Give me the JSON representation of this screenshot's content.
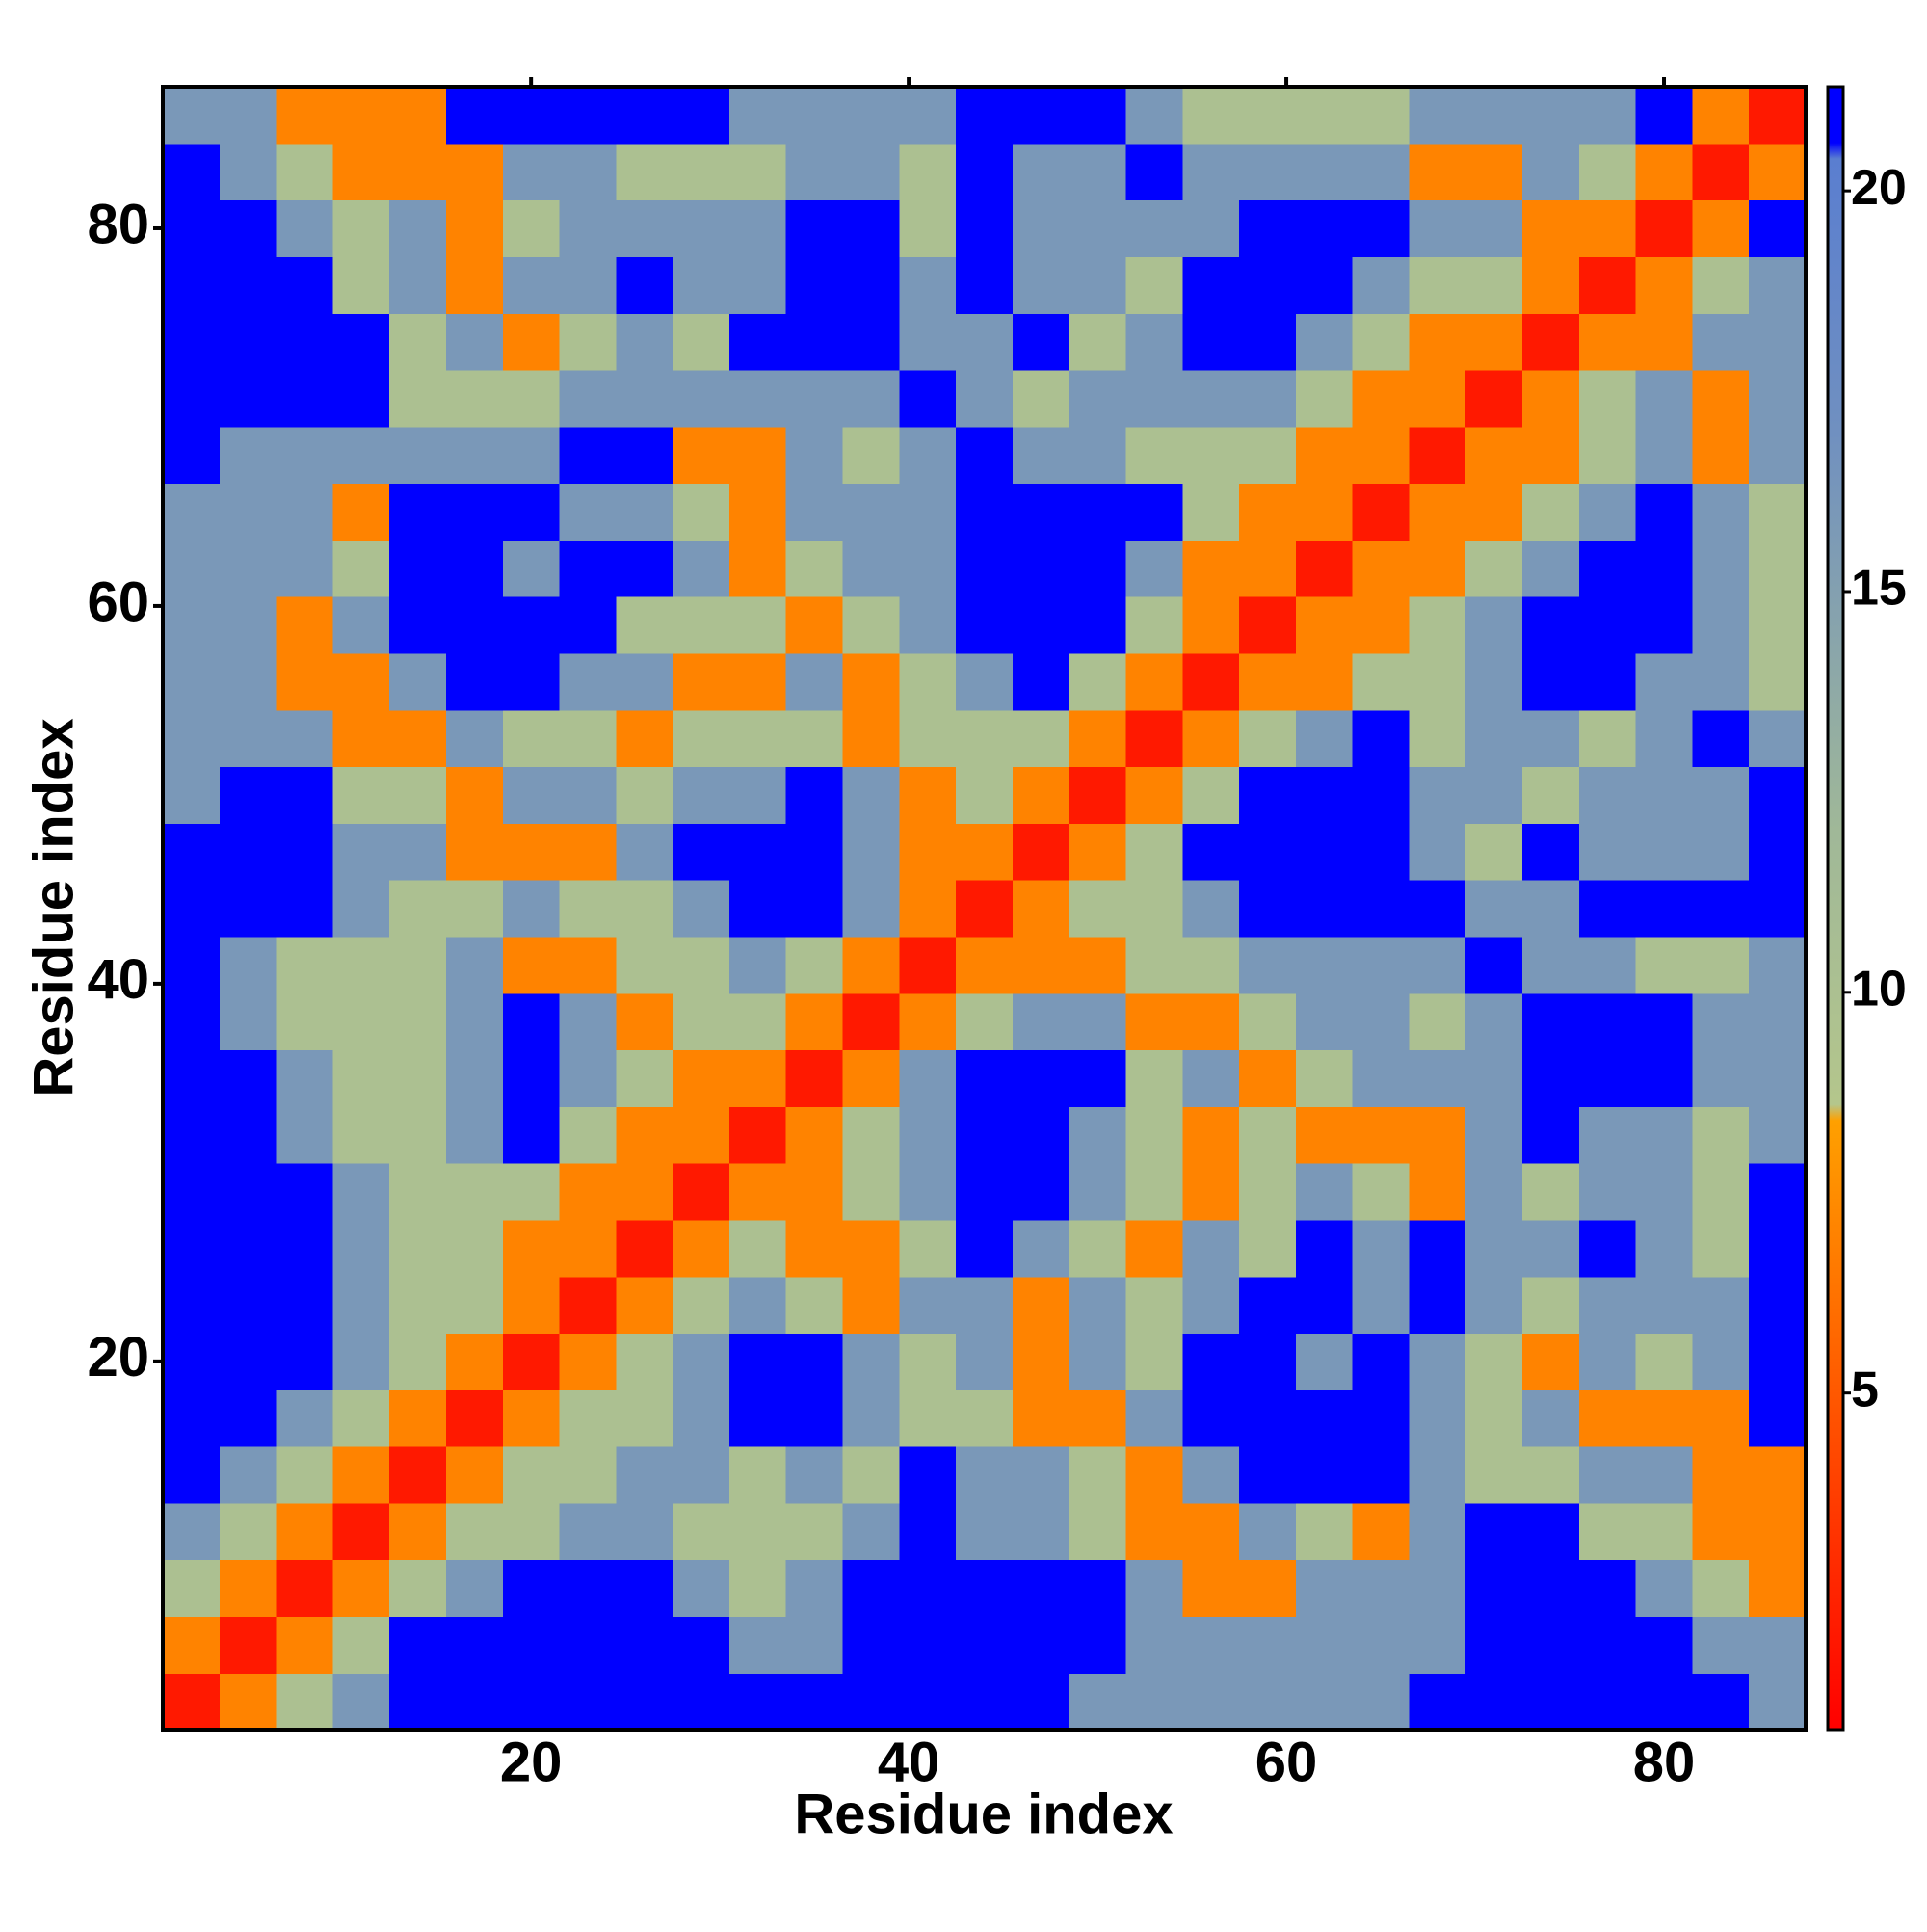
{
  "chart_data": {
    "type": "heatmap",
    "xlabel": "Residue index",
    "ylabel": "Residue index",
    "xlim": [
      0.5,
      87.5
    ],
    "ylim": [
      0.5,
      87.5
    ],
    "xticks": [
      20,
      40,
      60,
      80
    ],
    "yticks": [
      20,
      40,
      60,
      80
    ],
    "zlim": [
      0.8,
      21.3
    ],
    "zticks": [
      5,
      10,
      15,
      20
    ],
    "colorscale": [
      [
        0.8,
        "#ff0000"
      ],
      [
        8.4,
        "#ffa000"
      ],
      [
        8.6,
        "#b4c68c"
      ],
      [
        12,
        "#a0b898"
      ],
      [
        17,
        "#7090c0"
      ],
      [
        20.4,
        "#5a7ed0"
      ],
      [
        20.6,
        "#0000ff"
      ],
      [
        21.3,
        "#0000ff"
      ]
    ],
    "x": [
      2,
      5,
      8,
      11,
      14,
      17,
      20,
      23,
      26,
      29,
      32,
      35,
      38,
      41,
      44,
      47,
      50,
      53,
      56,
      59,
      62,
      65,
      68,
      71,
      74,
      77,
      80,
      83,
      86
    ],
    "y": [
      2,
      5,
      8,
      11,
      14,
      17,
      20,
      23,
      26,
      29,
      32,
      35,
      38,
      41,
      44,
      47,
      50,
      53,
      56,
      59,
      62,
      65,
      68,
      71,
      74,
      77,
      80,
      83,
      86
    ],
    "z": [
      [
        2,
        7,
        10,
        16,
        21,
        21,
        21,
        21,
        21,
        21,
        21,
        21,
        21,
        21,
        21,
        21,
        16,
        16,
        16,
        16,
        16,
        16,
        21,
        21,
        21,
        21,
        21,
        21,
        16
      ],
      [
        7,
        2,
        7,
        10,
        21,
        21,
        21,
        21,
        21,
        21,
        16,
        16,
        21,
        21,
        21,
        21,
        21,
        16,
        16,
        16,
        16,
        16,
        16,
        21,
        21,
        21,
        21,
        16,
        16
      ],
      [
        10,
        7,
        2,
        7,
        10,
        16,
        21,
        21,
        21,
        16,
        10,
        16,
        21,
        21,
        21,
        21,
        21,
        16,
        7,
        7,
        16,
        16,
        16,
        21,
        21,
        21,
        16,
        10,
        7
      ],
      [
        16,
        10,
        7,
        2,
        7,
        10,
        10,
        16,
        16,
        10,
        10,
        10,
        16,
        21,
        16,
        16,
        10,
        7,
        7,
        16,
        10,
        7,
        16,
        21,
        21,
        10,
        10,
        7,
        7
      ],
      [
        21,
        16,
        10,
        7,
        2,
        7,
        10,
        10,
        16,
        16,
        10,
        16,
        10,
        21,
        16,
        16,
        10,
        7,
        16,
        21,
        21,
        21,
        16,
        10,
        10,
        16,
        16,
        7,
        7
      ],
      [
        21,
        21,
        16,
        10,
        7,
        2,
        7,
        10,
        10,
        16,
        21,
        21,
        16,
        10,
        10,
        7,
        7,
        16,
        21,
        21,
        21,
        21,
        16,
        10,
        16,
        7,
        7,
        7,
        21
      ],
      [
        21,
        21,
        21,
        16,
        10,
        7,
        2,
        7,
        10,
        16,
        21,
        21,
        16,
        10,
        16,
        7,
        16,
        10,
        21,
        21,
        16,
        21,
        16,
        10,
        7,
        16,
        10,
        16,
        21
      ],
      [
        21,
        21,
        21,
        16,
        10,
        10,
        7,
        2,
        7,
        10,
        16,
        10,
        7,
        16,
        16,
        7,
        16,
        10,
        16,
        21,
        21,
        16,
        21,
        16,
        10,
        16,
        16,
        16,
        21
      ],
      [
        21,
        21,
        21,
        16,
        10,
        10,
        7,
        7,
        2,
        7,
        10,
        7,
        7,
        10,
        21,
        16,
        10,
        7,
        16,
        10,
        21,
        16,
        21,
        16,
        16,
        21,
        16,
        10,
        21
      ],
      [
        21,
        21,
        21,
        16,
        10,
        10,
        10,
        7,
        7,
        2,
        7,
        7,
        10,
        16,
        21,
        21,
        16,
        10,
        7,
        10,
        16,
        10,
        7,
        16,
        10,
        16,
        16,
        10,
        21
      ],
      [
        21,
        21,
        16,
        10,
        10,
        16,
        21,
        10,
        7,
        7,
        2,
        7,
        10,
        16,
        21,
        21,
        16,
        10,
        7,
        10,
        7,
        7,
        7,
        16,
        21,
        16,
        16,
        10,
        16
      ],
      [
        21,
        21,
        16,
        10,
        10,
        16,
        21,
        16,
        10,
        7,
        7,
        2,
        7,
        16,
        21,
        21,
        21,
        10,
        16,
        7,
        10,
        16,
        16,
        16,
        21,
        21,
        21,
        16,
        16
      ],
      [
        21,
        16,
        10,
        10,
        10,
        16,
        21,
        16,
        7,
        10,
        10,
        7,
        2,
        7,
        10,
        16,
        16,
        7,
        7,
        10,
        16,
        16,
        10,
        16,
        21,
        21,
        21,
        16,
        16
      ],
      [
        21,
        16,
        10,
        10,
        10,
        16,
        7,
        7,
        10,
        10,
        16,
        10,
        7,
        2,
        7,
        7,
        7,
        10,
        10,
        16,
        16,
        16,
        16,
        21,
        16,
        16,
        10,
        10,
        16
      ],
      [
        21,
        21,
        21,
        16,
        10,
        10,
        16,
        10,
        10,
        16,
        21,
        21,
        16,
        7,
        2,
        7,
        10,
        10,
        16,
        21,
        21,
        21,
        21,
        16,
        16,
        21,
        21,
        21,
        21
      ],
      [
        21,
        21,
        21,
        16,
        16,
        7,
        7,
        7,
        16,
        21,
        21,
        21,
        16,
        7,
        7,
        2,
        7,
        10,
        21,
        21,
        21,
        21,
        16,
        10,
        21,
        16,
        16,
        16,
        21
      ],
      [
        16,
        21,
        21,
        10,
        10,
        7,
        16,
        16,
        10,
        16,
        16,
        21,
        16,
        7,
        10,
        7,
        2,
        7,
        10,
        21,
        21,
        21,
        16,
        16,
        10,
        16,
        16,
        16,
        21
      ],
      [
        16,
        16,
        16,
        7,
        7,
        16,
        10,
        10,
        7,
        10,
        10,
        10,
        7,
        10,
        10,
        10,
        7,
        2,
        7,
        10,
        16,
        21,
        10,
        16,
        16,
        10,
        16,
        21,
        16
      ],
      [
        16,
        16,
        7,
        7,
        16,
        21,
        21,
        16,
        16,
        7,
        7,
        16,
        7,
        10,
        16,
        21,
        10,
        7,
        2,
        7,
        7,
        10,
        10,
        16,
        21,
        21,
        16,
        16,
        10
      ],
      [
        16,
        16,
        7,
        16,
        21,
        21,
        21,
        21,
        10,
        10,
        10,
        7,
        10,
        16,
        21,
        21,
        21,
        10,
        7,
        2,
        7,
        7,
        10,
        16,
        21,
        21,
        21,
        16,
        10
      ],
      [
        16,
        16,
        16,
        10,
        21,
        21,
        16,
        21,
        21,
        16,
        7,
        10,
        16,
        16,
        21,
        21,
        21,
        16,
        7,
        7,
        2,
        7,
        7,
        10,
        16,
        21,
        21,
        16,
        10
      ],
      [
        16,
        16,
        16,
        7,
        21,
        21,
        21,
        16,
        16,
        10,
        7,
        16,
        16,
        16,
        21,
        21,
        21,
        21,
        10,
        7,
        7,
        2,
        7,
        7,
        10,
        16,
        21,
        16,
        10
      ],
      [
        21,
        16,
        16,
        16,
        16,
        16,
        16,
        21,
        21,
        7,
        7,
        16,
        10,
        16,
        21,
        16,
        16,
        10,
        10,
        10,
        7,
        7,
        2,
        7,
        7,
        10,
        16,
        7,
        16
      ],
      [
        21,
        21,
        21,
        21,
        10,
        10,
        10,
        16,
        16,
        16,
        16,
        16,
        16,
        21,
        16,
        10,
        16,
        16,
        16,
        16,
        10,
        7,
        7,
        2,
        7,
        10,
        16,
        7,
        16
      ],
      [
        21,
        21,
        21,
        21,
        10,
        16,
        7,
        10,
        16,
        10,
        21,
        21,
        21,
        16,
        16,
        21,
        10,
        16,
        21,
        21,
        16,
        10,
        7,
        7,
        2,
        7,
        7,
        16,
        16
      ],
      [
        21,
        21,
        21,
        10,
        16,
        7,
        16,
        16,
        21,
        16,
        16,
        21,
        21,
        16,
        21,
        16,
        16,
        10,
        21,
        21,
        21,
        16,
        10,
        10,
        7,
        2,
        7,
        10,
        16
      ],
      [
        21,
        21,
        16,
        10,
        16,
        7,
        10,
        16,
        16,
        16,
        16,
        21,
        21,
        10,
        21,
        16,
        16,
        16,
        16,
        21,
        21,
        21,
        16,
        16,
        7,
        7,
        2,
        7,
        21
      ],
      [
        21,
        16,
        10,
        7,
        7,
        7,
        16,
        16,
        10,
        10,
        10,
        16,
        16,
        10,
        21,
        16,
        16,
        21,
        16,
        16,
        16,
        16,
        7,
        7,
        16,
        10,
        7,
        2,
        7
      ],
      [
        16,
        16,
        7,
        7,
        7,
        21,
        21,
        21,
        21,
        21,
        16,
        16,
        16,
        16,
        21,
        21,
        21,
        16,
        10,
        10,
        10,
        10,
        16,
        16,
        16,
        16,
        21,
        7,
        2
      ]
    ]
  }
}
